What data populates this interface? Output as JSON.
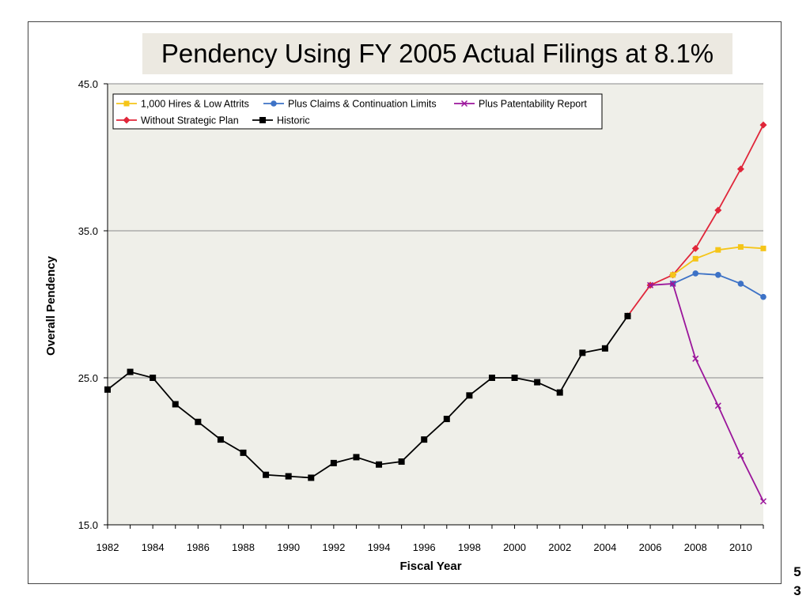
{
  "page": {
    "title": "Pendency Using FY 2005 Actual Filings at 8.1%",
    "page_number": "53"
  },
  "chart_data": {
    "type": "line",
    "title": "Pendency Using FY 2005 Actual Filings at 8.1%",
    "xlabel": "Fiscal Year",
    "ylabel": "Overall Pendency",
    "xlim": [
      1982,
      2011
    ],
    "ylim": [
      15.0,
      45.0
    ],
    "x_ticks": [
      "1982",
      "1984",
      "1986",
      "1988",
      "1990",
      "1992",
      "1994",
      "1996",
      "1998",
      "2000",
      "2002",
      "2004",
      "2006",
      "2008",
      "2010"
    ],
    "y_ticks": [
      "15.0",
      "25.0",
      "35.0",
      "45.0"
    ],
    "grid": "horizontal",
    "plot_background": "#efefe9",
    "legend_position": "top-left",
    "series": [
      {
        "name": "1,000 Hires & Low Attrits",
        "color": "#f5c518",
        "marker": "square",
        "x": [
          2007,
          2008,
          2009,
          2010,
          2011
        ],
        "y": [
          32.0,
          33.1,
          33.7,
          33.9,
          33.8
        ]
      },
      {
        "name": "Plus Claims & Continuation Limits",
        "color": "#3d72c6",
        "marker": "circle",
        "x": [
          2007,
          2008,
          2009,
          2010,
          2011
        ],
        "y": [
          31.4,
          32.1,
          32.0,
          31.4,
          30.5
        ]
      },
      {
        "name": "Plus Patentability Report",
        "color": "#9b169b",
        "marker": "x",
        "x": [
          2006,
          2007,
          2008,
          2009,
          2010,
          2011
        ],
        "y": [
          31.3,
          31.4,
          26.3,
          23.1,
          19.7,
          16.6
        ]
      },
      {
        "name": "Without Strategic Plan",
        "color": "#e0263a",
        "marker": "diamond",
        "x": [
          2005,
          2006,
          2007,
          2008,
          2009,
          2010,
          2011
        ],
        "y": [
          29.2,
          31.3,
          32.0,
          33.8,
          36.4,
          39.2,
          42.2
        ]
      },
      {
        "name": "Historic",
        "color": "#000000",
        "marker": "square",
        "x": [
          1982,
          1983,
          1984,
          1985,
          1986,
          1987,
          1988,
          1989,
          1990,
          1991,
          1992,
          1993,
          1994,
          1995,
          1996,
          1997,
          1998,
          1999,
          2000,
          2001,
          2002,
          2003,
          2004,
          2005
        ],
        "y": [
          24.2,
          25.4,
          25.0,
          23.2,
          22.0,
          20.8,
          19.9,
          18.4,
          18.3,
          18.2,
          19.2,
          19.6,
          19.1,
          19.3,
          20.8,
          22.2,
          23.8,
          25.0,
          25.0,
          24.7,
          24.0,
          26.7,
          27.0,
          29.2
        ]
      }
    ]
  }
}
